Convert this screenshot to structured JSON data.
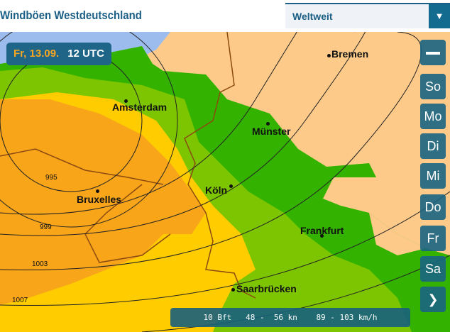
{
  "header": {
    "title": "Windböen Westdeutschland",
    "region_select": "Weltweit"
  },
  "timestamp": {
    "date": "Fr, 13.09.",
    "time": "12 UTC"
  },
  "day_buttons": [
    "So",
    "Mo",
    "Di",
    "Mi",
    "Do",
    "Fr",
    "Sa"
  ],
  "icons": {
    "zoom_out": "minus-icon",
    "next": "chevron-right-icon",
    "dropdown": "triangle-down-icon"
  },
  "cities": [
    "Bremen",
    "Amsterdam",
    "Münster",
    "Bruxelles",
    "Köln",
    "Frankfurt",
    "Saarbrücken"
  ],
  "isobars": [
    "995",
    "999",
    "1003",
    "1007"
  ],
  "legend": {
    "bft": "10 Bft",
    "kn": "48 -  56 kn",
    "kmh": "89 - 103 km/h"
  },
  "colors": {
    "water": "#9dbcee",
    "calm": "#fdca8a",
    "green": "#33b300",
    "light_green": "#7dc500",
    "yellow": "#ffcc00",
    "orange": "#f9a51a",
    "accent": "#1b5f86"
  }
}
